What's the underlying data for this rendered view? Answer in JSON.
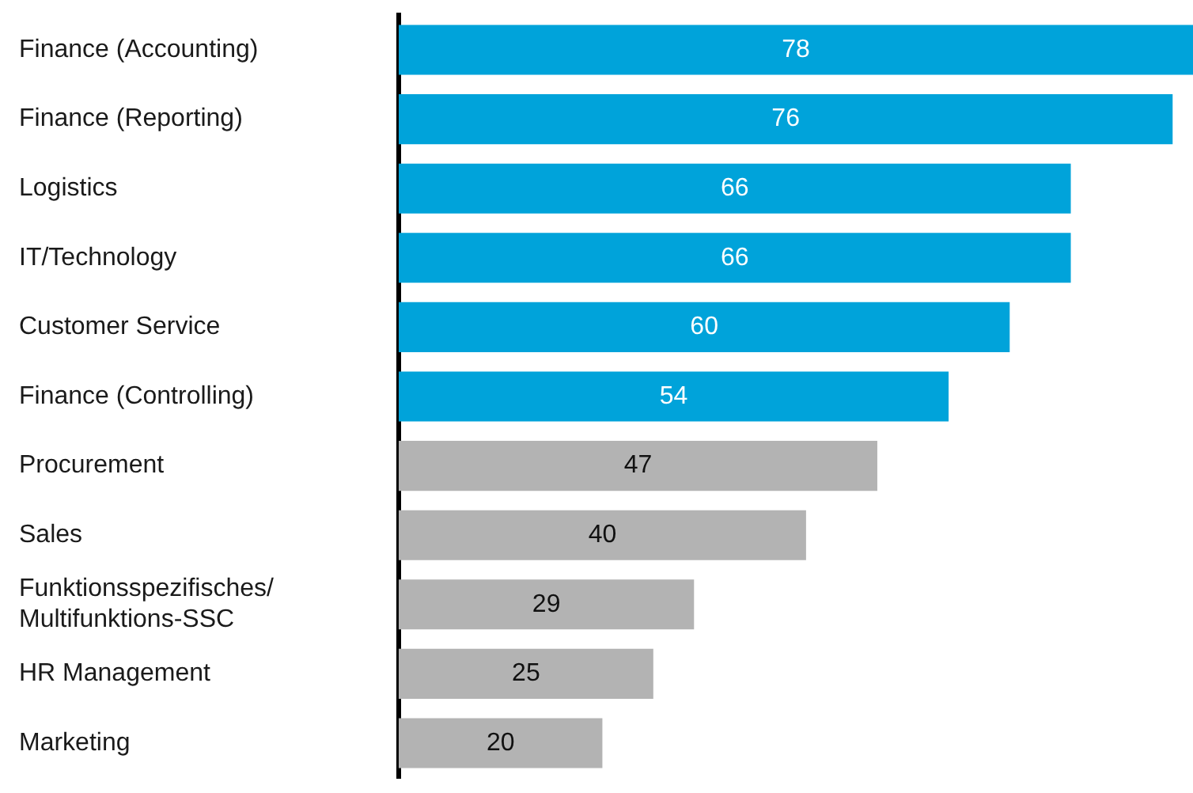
{
  "chart_data": {
    "type": "bar",
    "orientation": "horizontal",
    "categories": [
      "Finance (Accounting)",
      "Finance (Reporting)",
      "Logistics",
      "IT/Technology",
      "Customer Service",
      "Finance (Controlling)",
      "Procurement",
      "Sales",
      "Funktionsspezifisches/ Multifunktions-SSC",
      "HR Management",
      "Marketing"
    ],
    "values": [
      78,
      76,
      66,
      66,
      60,
      54,
      47,
      40,
      29,
      25,
      20
    ],
    "colors": [
      "#00a3da",
      "#00a3da",
      "#00a3da",
      "#00a3da",
      "#00a3da",
      "#00a3da",
      "#b3b3b3",
      "#b3b3b3",
      "#b3b3b3",
      "#b3b3b3",
      "#b3b3b3"
    ],
    "data_labels": true
  }
}
